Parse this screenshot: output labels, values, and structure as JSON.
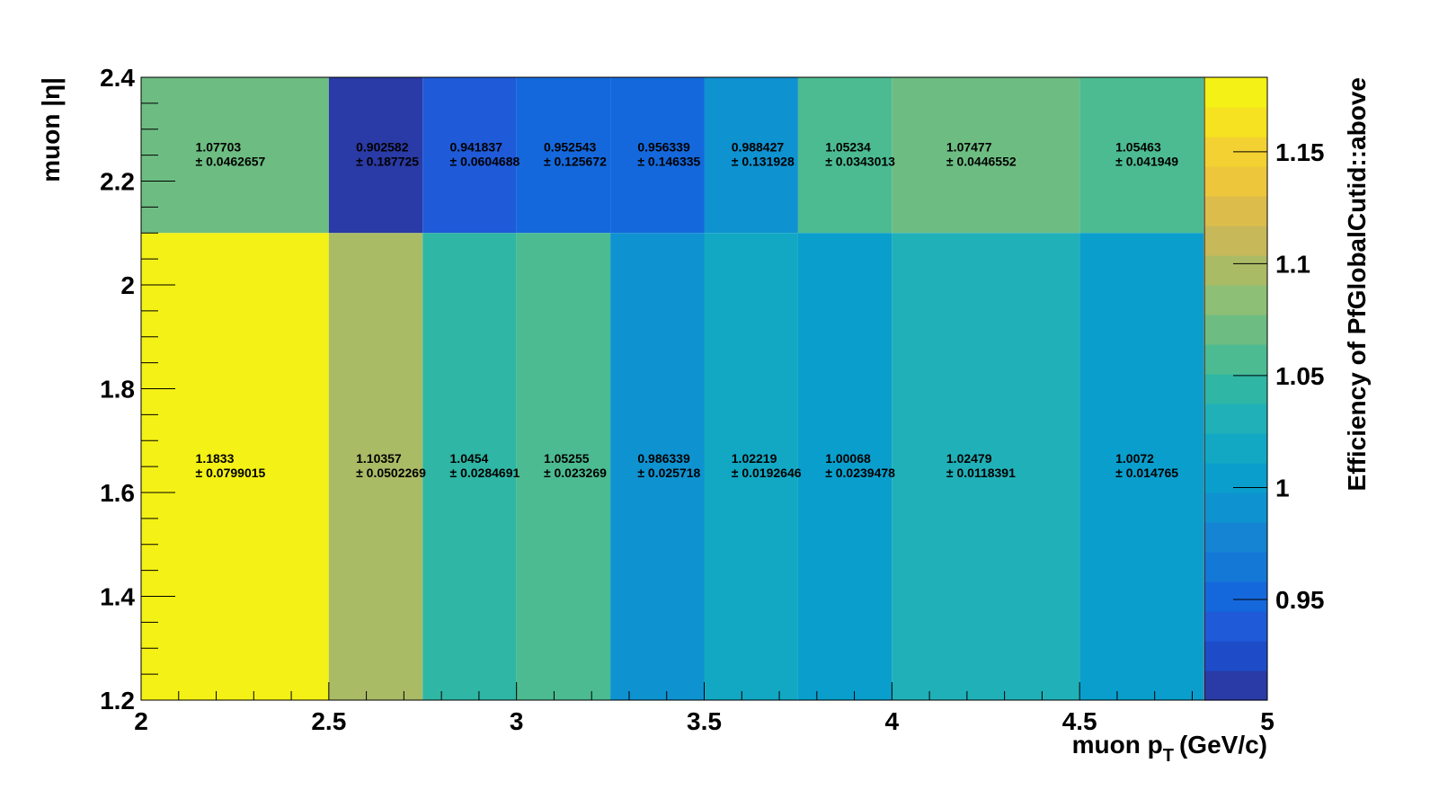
{
  "chart_data": {
    "type": "heatmap",
    "title": "",
    "xlabel": "muon p",
    "xlabel_subscript": "T",
    "xlabel_unit": "(GeV/c)",
    "ylabel": "muon |η|",
    "zlabel": "Efficiency of PfGlobalCutid::above",
    "xlim": [
      2,
      5
    ],
    "ylim": [
      1.2,
      2.4
    ],
    "zlim": [
      0.905,
      1.1833
    ],
    "x_edges": [
      2,
      2.5,
      2.75,
      3,
      3.25,
      3.5,
      3.75,
      4,
      4.5,
      4.83
    ],
    "y_edges": [
      1.2,
      2.1,
      2.4
    ],
    "x_ticks": [
      {
        "value": 2,
        "label": "2"
      },
      {
        "value": 2.5,
        "label": "2.5"
      },
      {
        "value": 3,
        "label": "3"
      },
      {
        "value": 3.5,
        "label": "3.5"
      },
      {
        "value": 4,
        "label": "4"
      },
      {
        "value": 4.5,
        "label": "4.5"
      },
      {
        "value": 5,
        "label": "5"
      }
    ],
    "y_ticks": [
      {
        "value": 1.2,
        "label": "1.2"
      },
      {
        "value": 1.4,
        "label": "1.4"
      },
      {
        "value": 1.6,
        "label": "1.6"
      },
      {
        "value": 1.8,
        "label": "1.8"
      },
      {
        "value": 2.0,
        "label": "2"
      },
      {
        "value": 2.2,
        "label": "2.2"
      },
      {
        "value": 2.4,
        "label": "2.4"
      }
    ],
    "z_ticks": [
      {
        "value": 0.95,
        "label": "0.95"
      },
      {
        "value": 1.0,
        "label": "1"
      },
      {
        "value": 1.05,
        "label": "1.05"
      },
      {
        "value": 1.1,
        "label": "1.1"
      },
      {
        "value": 1.15,
        "label": "1.15"
      }
    ],
    "cells": [
      {
        "row": 1,
        "col": 0,
        "value": 1.07703,
        "text": "1.07703",
        "err_text": "± 0.0462657"
      },
      {
        "row": 1,
        "col": 1,
        "value": 0.902582,
        "text": "0.902582",
        "err_text": "± 0.187725"
      },
      {
        "row": 1,
        "col": 2,
        "value": 0.941837,
        "text": "0.941837",
        "err_text": "± 0.0604688"
      },
      {
        "row": 1,
        "col": 3,
        "value": 0.952543,
        "text": "0.952543",
        "err_text": "± 0.125672"
      },
      {
        "row": 1,
        "col": 4,
        "value": 0.956339,
        "text": "0.956339",
        "err_text": "± 0.146335"
      },
      {
        "row": 1,
        "col": 5,
        "value": 0.988427,
        "text": "0.988427",
        "err_text": "± 0.131928"
      },
      {
        "row": 1,
        "col": 6,
        "value": 1.05234,
        "text": "1.05234",
        "err_text": "± 0.0343013"
      },
      {
        "row": 1,
        "col": 7,
        "value": 1.07477,
        "text": "1.07477",
        "err_text": "± 0.0446552"
      },
      {
        "row": 1,
        "col": 8,
        "value": 1.05463,
        "text": "1.05463",
        "err_text": "± 0.041949"
      },
      {
        "row": 0,
        "col": 0,
        "value": 1.1833,
        "text": "1.1833",
        "err_text": "± 0.0799015"
      },
      {
        "row": 0,
        "col": 1,
        "value": 1.10357,
        "text": "1.10357",
        "err_text": "± 0.0502269"
      },
      {
        "row": 0,
        "col": 2,
        "value": 1.0454,
        "text": "1.0454",
        "err_text": "± 0.0284691"
      },
      {
        "row": 0,
        "col": 3,
        "value": 1.05255,
        "text": "1.05255",
        "err_text": "± 0.023269"
      },
      {
        "row": 0,
        "col": 4,
        "value": 0.986339,
        "text": "0.986339",
        "err_text": "± 0.025718"
      },
      {
        "row": 0,
        "col": 5,
        "value": 1.02219,
        "text": "1.02219",
        "err_text": "± 0.0192646"
      },
      {
        "row": 0,
        "col": 6,
        "value": 1.00068,
        "text": "1.00068",
        "err_text": "± 0.0239478"
      },
      {
        "row": 0,
        "col": 7,
        "value": 1.02479,
        "text": "1.02479",
        "err_text": "± 0.0118391"
      },
      {
        "row": 0,
        "col": 8,
        "value": 1.0072,
        "text": "1.0072",
        "err_text": "± 0.014765"
      }
    ],
    "palette": [
      "#2a3aa6",
      "#1e4cc8",
      "#1f5ad8",
      "#1468dc",
      "#1478d6",
      "#1584d2",
      "#0f92d0",
      "#0a9ecc",
      "#12a8c4",
      "#20b0b8",
      "#2fb6a4",
      "#4cbb92",
      "#6dbd82",
      "#8ebf76",
      "#aabb66",
      "#c7b85a",
      "#dcbd4c",
      "#eec63c",
      "#f4d132",
      "#f6e220",
      "#f4f116"
    ]
  }
}
